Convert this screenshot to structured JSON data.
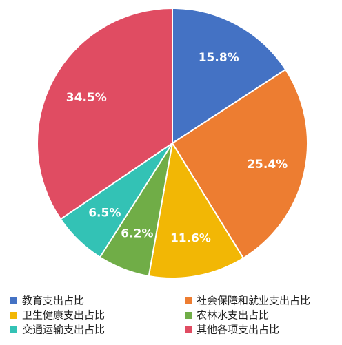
{
  "chart_data": {
    "type": "pie",
    "categories": [
      "教育支出占比",
      "社会保障和就业支出占比",
      "卫生健康支出占比",
      "农林水支出占比",
      "交通运输支出占比",
      "其他各项支出占比"
    ],
    "values": [
      15.8,
      25.4,
      11.6,
      6.2,
      6.5,
      34.5
    ],
    "value_labels": [
      "15.8%",
      "25.4%",
      "11.6%",
      "6.2%",
      "6.5%",
      "34.5%"
    ],
    "colors": [
      "#4472c4",
      "#ed7d31",
      "#f2b705",
      "#70ad47",
      "#33c2b5",
      "#e04c62"
    ]
  }
}
